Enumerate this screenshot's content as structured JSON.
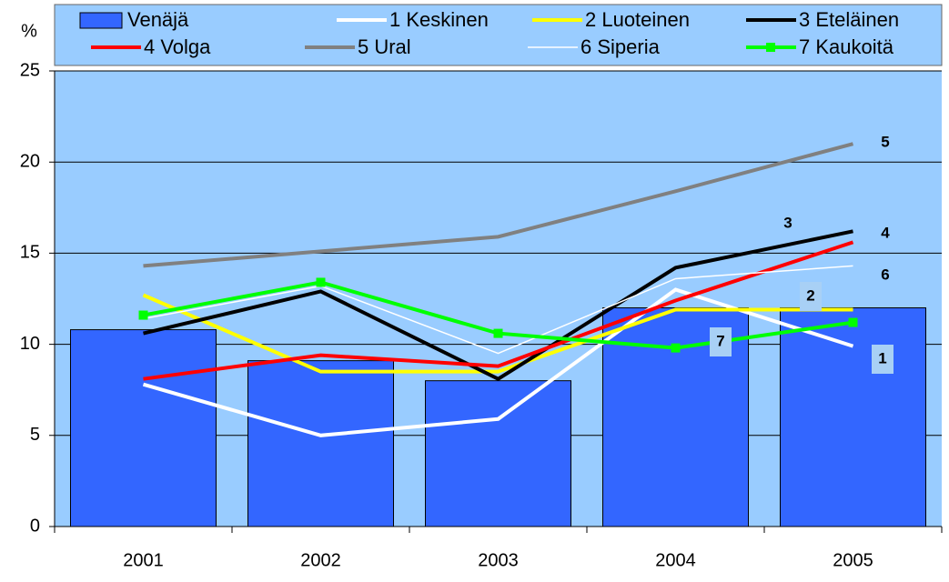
{
  "chart_data": {
    "type": "bar-line",
    "y_label": "%",
    "categories": [
      "2001",
      "2002",
      "2003",
      "2004",
      "2005"
    ],
    "bars": {
      "name": "Venäjä",
      "color": "#3366ff",
      "values": [
        10.8,
        9.1,
        8.0,
        12.0,
        12.0
      ]
    },
    "series": [
      {
        "name": "1 Keskinen",
        "color": "#ffffff",
        "width": 4,
        "values": [
          7.8,
          5.0,
          5.9,
          13.0,
          9.9
        ]
      },
      {
        "name": "2 Luoteinen",
        "color": "#ffff00",
        "width": 4,
        "values": [
          12.7,
          8.5,
          8.5,
          11.9,
          11.9
        ]
      },
      {
        "name": "3 Eteläinen",
        "color": "#000000",
        "width": 4,
        "values": [
          10.6,
          12.9,
          8.1,
          14.2,
          16.2
        ]
      },
      {
        "name": "4 Volga",
        "color": "#ff0000",
        "width": 4,
        "values": [
          8.1,
          9.4,
          8.8,
          12.4,
          15.6
        ]
      },
      {
        "name": "5 Ural",
        "color": "#808080",
        "width": 4,
        "values": [
          14.3,
          15.1,
          15.9,
          18.4,
          21.0
        ]
      },
      {
        "name": "6 Siperia",
        "color": "#ffffff",
        "width": 1.5,
        "values": [
          11.4,
          13.2,
          9.5,
          13.6,
          14.3
        ]
      },
      {
        "name": "7 Kaukoitä",
        "color": "#00ff00",
        "width": 4,
        "markers": true,
        "values": [
          11.6,
          13.4,
          10.6,
          9.8,
          11.2
        ]
      }
    ],
    "annotations": [
      "5",
      "4",
      "3",
      "6",
      "2",
      "1",
      "7"
    ],
    "ylim": [
      0,
      25
    ],
    "yticks": [
      0,
      5,
      10,
      15,
      20,
      25
    ],
    "grid": true
  }
}
